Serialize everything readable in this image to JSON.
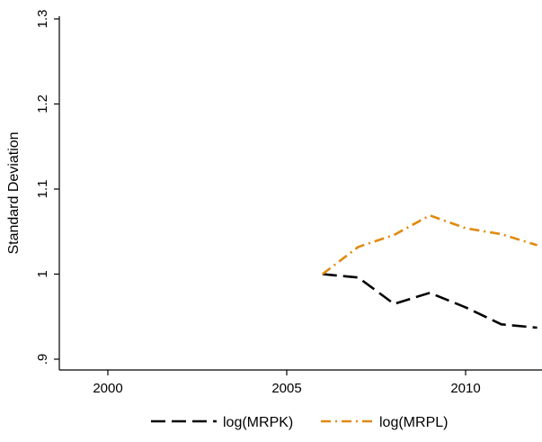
{
  "chart_data": {
    "type": "line",
    "xlabel": "",
    "ylabel": "Standard Deviation",
    "xlim": [
      1999,
      2012
    ],
    "ylim": [
      0.9,
      1.3
    ],
    "x_ticks": [
      2000,
      2005,
      2010
    ],
    "x_tick_labels": [
      "2000",
      "2005",
      "2010"
    ],
    "y_ticks": [
      0.9,
      1.0,
      1.1,
      1.2,
      1.3
    ],
    "y_tick_labels": [
      ".9",
      "1",
      "1.1",
      "1.2",
      "1.3"
    ],
    "grid": false,
    "legend_position": "bottom",
    "series": [
      {
        "name": "log(MRPK)",
        "color": "#000000",
        "dash": "long-dash",
        "x": [
          2006,
          2007,
          2008,
          2009,
          2010,
          2011,
          2012
        ],
        "values": [
          1.0,
          0.996,
          0.965,
          0.978,
          0.961,
          0.941,
          0.937
        ]
      },
      {
        "name": "log(MRPL)",
        "color": "#E08A10",
        "dash": "dash-dot",
        "x": [
          2006,
          2007,
          2008,
          2009,
          2010,
          2011,
          2012
        ],
        "values": [
          1.0,
          1.032,
          1.046,
          1.069,
          1.054,
          1.047,
          1.034
        ]
      }
    ]
  }
}
